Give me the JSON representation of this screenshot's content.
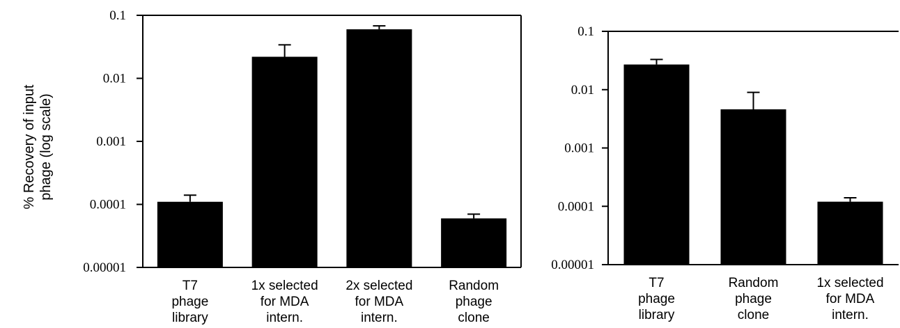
{
  "chart_data": [
    {
      "type": "bar",
      "scale": "log",
      "ylabel": [
        "% Recovery of input",
        "phage (log scale)"
      ],
      "ylim": [
        1e-05,
        0.1
      ],
      "yticks": [
        "0.1",
        "0.01",
        "0.001",
        "0.0001",
        "0.00001"
      ],
      "categories": [
        [
          "T7",
          "phage",
          "library"
        ],
        [
          "1x selected",
          "for MDA",
          "intern."
        ],
        [
          "2x selected",
          "for MDA",
          "intern."
        ],
        [
          "Random",
          "phage",
          "clone"
        ]
      ],
      "values": [
        0.00011,
        0.022,
        0.06,
        6e-05
      ],
      "error_upper": [
        0.00014,
        0.034,
        0.068,
        7e-05
      ],
      "bar_color": "#000000"
    },
    {
      "type": "bar",
      "scale": "log",
      "ylabel": [],
      "ylim": [
        1e-05,
        0.1
      ],
      "yticks": [
        "0.1",
        "0.01",
        "0.001",
        "0.0001",
        "0.00001"
      ],
      "categories": [
        [
          "T7",
          "phage",
          "library"
        ],
        [
          "Random",
          "phage",
          "clone"
        ],
        [
          "1x selected",
          "for MDA",
          "intern."
        ]
      ],
      "values": [
        0.027,
        0.0046,
        0.00012
      ],
      "error_upper": [
        0.033,
        0.009,
        0.00014
      ],
      "bar_color": "#000000"
    }
  ]
}
